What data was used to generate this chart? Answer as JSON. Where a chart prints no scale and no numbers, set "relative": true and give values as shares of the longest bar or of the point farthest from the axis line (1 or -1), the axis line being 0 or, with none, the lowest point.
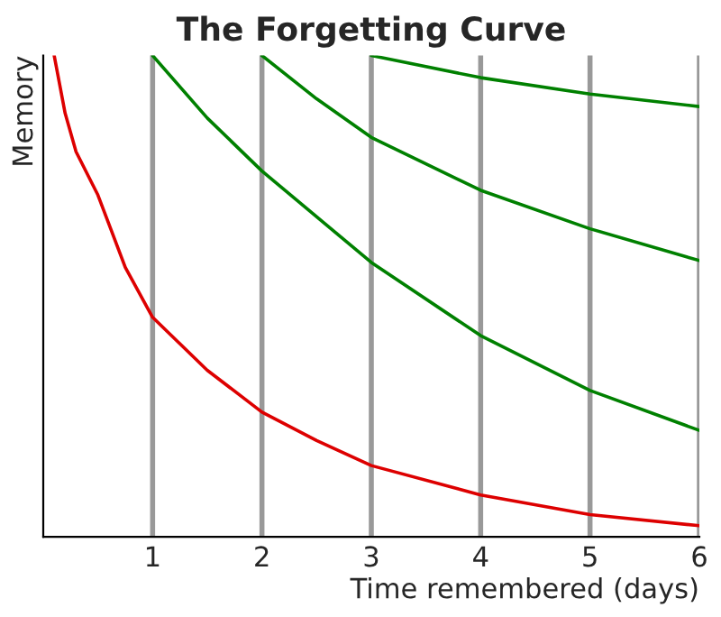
{
  "chart_data": {
    "type": "line",
    "title": "The Forgetting Curve",
    "xlabel": "Time remembered (days)",
    "ylabel": "Memory",
    "relative": true,
    "xlim": [
      0,
      6
    ],
    "xticks": [
      1,
      2,
      3,
      4,
      5,
      6
    ],
    "grid": "x",
    "legend": false,
    "marker": "none",
    "line_style": "solid",
    "series": [
      {
        "color": "#dd0000",
        "x": [
          0.1,
          0.2,
          0.3,
          0.5,
          0.75,
          1,
          1.5,
          2,
          2.5,
          3,
          4,
          5,
          6
        ],
        "values": [
          1.0,
          0.88,
          0.8,
          0.71,
          0.56,
          0.456,
          0.346,
          0.259,
          0.2,
          0.148,
          0.087,
          0.046,
          0.023
        ]
      },
      {
        "color": "#008000",
        "x": [
          1,
          1.5,
          2,
          3,
          4,
          5,
          6
        ],
        "values": [
          1.0,
          0.87,
          0.76,
          0.57,
          0.418,
          0.304,
          0.221
        ]
      },
      {
        "color": "#008000",
        "x": [
          2,
          2.5,
          3,
          4,
          5,
          6
        ],
        "values": [
          1.0,
          0.91,
          0.83,
          0.72,
          0.64,
          0.574
        ]
      },
      {
        "color": "#008000",
        "x": [
          3,
          4,
          5,
          6
        ],
        "values": [
          1.0,
          0.954,
          0.92,
          0.894
        ]
      }
    ]
  }
}
